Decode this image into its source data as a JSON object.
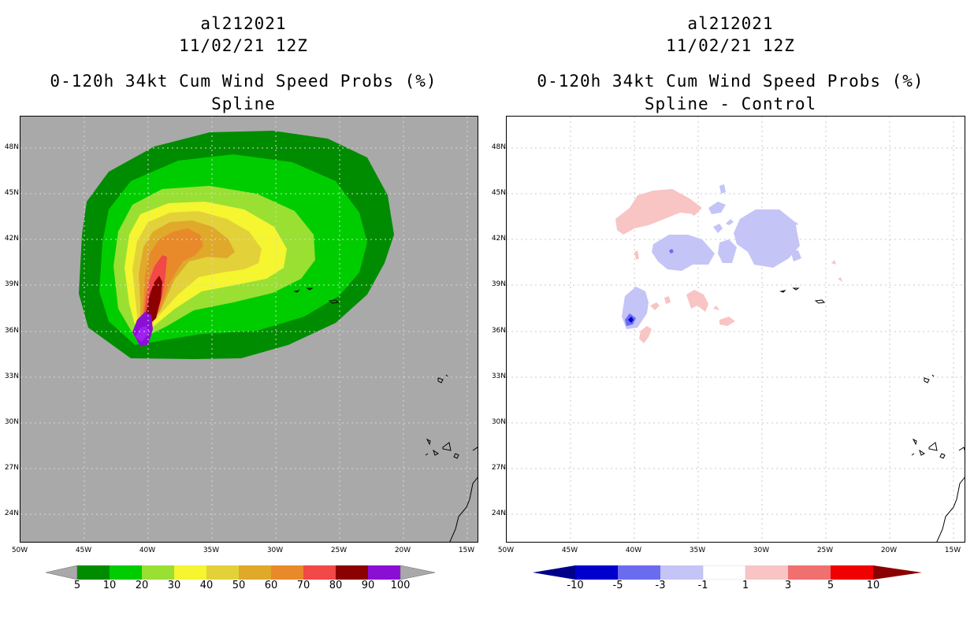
{
  "left_panel": {
    "title_line1": "al212021",
    "title_line2": "11/02/21 12Z",
    "title_line3": "0-120h 34kt Cum Wind Speed Probs (%)",
    "title_line4": "Spline",
    "background_color": "#a9a9a9",
    "colorbar": {
      "labels": [
        "5",
        "10",
        "20",
        "30",
        "40",
        "50",
        "60",
        "70",
        "80",
        "90",
        "100"
      ],
      "colors": [
        "#008c00",
        "#00cd00",
        "#99e033",
        "#f5f530",
        "#e3d13a",
        "#e0a92a",
        "#e88a2a",
        "#f24848",
        "#8c0000",
        "#8a0fd4"
      ],
      "end_color": "#a9a9a9"
    }
  },
  "right_panel": {
    "title_line1": "al212021",
    "title_line2": "11/02/21 12Z",
    "title_line3": "0-120h 34kt Cum Wind Speed Probs (%)",
    "title_line4": "Spline - Control",
    "background_color": "#ffffff",
    "colorbar": {
      "labels": [
        "-10",
        "-5",
        "-3",
        "-1",
        "1",
        "3",
        "5",
        "10"
      ],
      "colors": [
        "#0000cd",
        "#6b6bf0",
        "#c4c4f7",
        "#ffffff",
        "#f8c4c4",
        "#f07070",
        "#f00000"
      ],
      "end_colors": [
        "#00008b",
        "#8b0000"
      ]
    }
  },
  "axes": {
    "lat_labels": [
      "48N",
      "45N",
      "42N",
      "39N",
      "36N",
      "33N",
      "30N",
      "27N",
      "24N"
    ],
    "lon_labels": [
      "50W",
      "45W",
      "40W",
      "35W",
      "30W",
      "25W",
      "20W",
      "15W"
    ]
  }
}
